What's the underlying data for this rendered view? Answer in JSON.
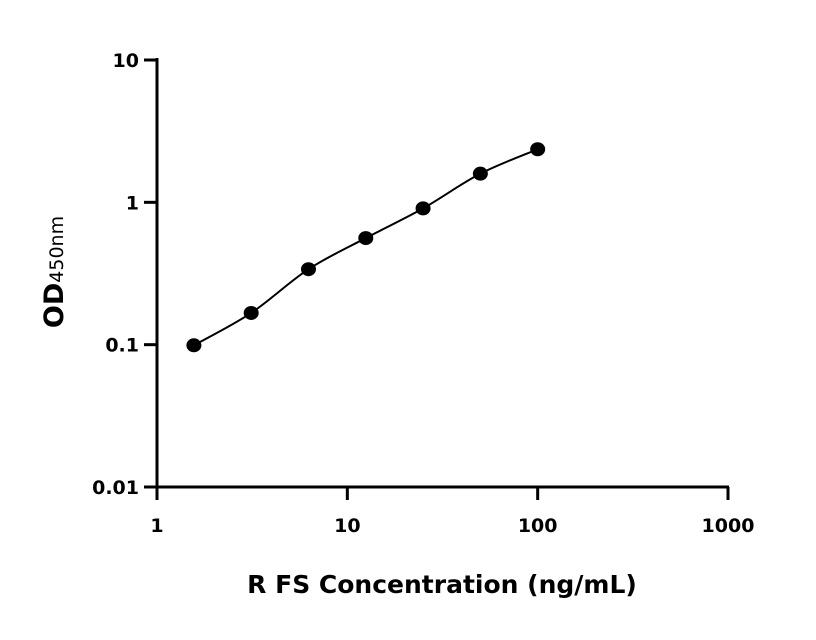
{
  "chart_data": {
    "type": "scatter",
    "title": "",
    "xlabel": "R FS Concentration (ng/mL)",
    "ylabel": "OD",
    "ylabel_sub": "450nm",
    "xscale": "log",
    "yscale": "log",
    "xlim": [
      1,
      1000
    ],
    "ylim": [
      0.01,
      10
    ],
    "x_ticks": [
      1,
      10,
      100,
      1000
    ],
    "x_tick_labels": [
      "1",
      "10",
      "100",
      "1000"
    ],
    "y_ticks": [
      0.01,
      0.1,
      1,
      10
    ],
    "y_tick_labels": [
      "0.01",
      "0.1",
      "1",
      "10"
    ],
    "grid": false,
    "fit_line": true,
    "colors": {
      "points": "#000000",
      "line": "#000000"
    },
    "series": [
      {
        "x": [
          1.5625,
          3.125,
          6.25,
          12.5,
          25,
          50,
          100
        ],
        "y": [
          0.099,
          0.167,
          0.339,
          0.561,
          0.907,
          1.59,
          2.36
        ]
      }
    ]
  }
}
